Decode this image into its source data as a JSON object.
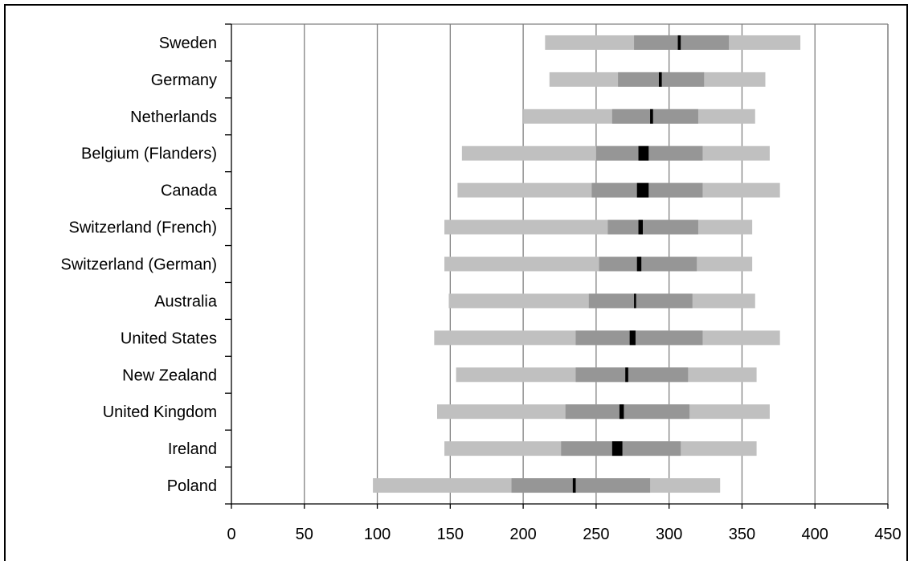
{
  "chart_data": {
    "type": "bar",
    "orientation": "horizontal",
    "title": "",
    "xlabel": "",
    "ylabel": "",
    "xlim": [
      0,
      450
    ],
    "xticks": [
      0,
      50,
      100,
      150,
      200,
      250,
      300,
      350,
      400,
      450
    ],
    "grid": "vertical",
    "categories": [
      "Sweden",
      "Germany",
      "Netherlands",
      "Belgium (Flanders)",
      "Canada",
      "Switzerland (French)",
      "Switzerland (German)",
      "Australia",
      "United States",
      "New Zealand",
      "United Kingdom",
      "Ireland",
      "Poland"
    ],
    "distribution": [
      {
        "country": "Sweden",
        "p5": 215,
        "p25": 276,
        "mean_low": 306,
        "mean_high": 308,
        "p75": 341,
        "p95": 390
      },
      {
        "country": "Germany",
        "p5": 218,
        "p25": 265,
        "mean_low": 293,
        "mean_high": 295,
        "p75": 324,
        "p95": 366
      },
      {
        "country": "Netherlands",
        "p5": 200,
        "p25": 261,
        "mean_low": 287,
        "mean_high": 289,
        "p75": 320,
        "p95": 359
      },
      {
        "country": "Belgium (Flanders)",
        "p5": 158,
        "p25": 250,
        "mean_low": 279,
        "mean_high": 286,
        "p75": 323,
        "p95": 369
      },
      {
        "country": "Canada",
        "p5": 155,
        "p25": 247,
        "mean_low": 278,
        "mean_high": 286,
        "p75": 323,
        "p95": 376
      },
      {
        "country": "Switzerland (French)",
        "p5": 146,
        "p25": 258,
        "mean_low": 279,
        "mean_high": 282,
        "p75": 320,
        "p95": 357
      },
      {
        "country": "Switzerland (German)",
        "p5": 146,
        "p25": 252,
        "mean_low": 278,
        "mean_high": 281,
        "p75": 319,
        "p95": 357
      },
      {
        "country": "Australia",
        "p5": 149,
        "p25": 245,
        "mean_low": 276,
        "mean_high": 277,
        "p75": 316,
        "p95": 359
      },
      {
        "country": "United States",
        "p5": 139,
        "p25": 236,
        "mean_low": 273,
        "mean_high": 277,
        "p75": 323,
        "p95": 376
      },
      {
        "country": "New Zealand",
        "p5": 154,
        "p25": 236,
        "mean_low": 270,
        "mean_high": 272,
        "p75": 313,
        "p95": 360
      },
      {
        "country": "United Kingdom",
        "p5": 141,
        "p25": 229,
        "mean_low": 266,
        "mean_high": 269,
        "p75": 314,
        "p95": 369
      },
      {
        "country": "Ireland",
        "p5": 146,
        "p25": 226,
        "mean_low": 261,
        "mean_high": 268,
        "p75": 308,
        "p95": 360
      },
      {
        "country": "Poland",
        "p5": 97,
        "p25": 192,
        "mean_low": 234,
        "mean_high": 236,
        "p75": 287,
        "p95": 335
      }
    ],
    "colors": {
      "outer_band": "#c0c0c0",
      "inner_band": "#969696",
      "mean_marker": "#000000",
      "gridline": "#808080",
      "axis": "#000000"
    }
  }
}
